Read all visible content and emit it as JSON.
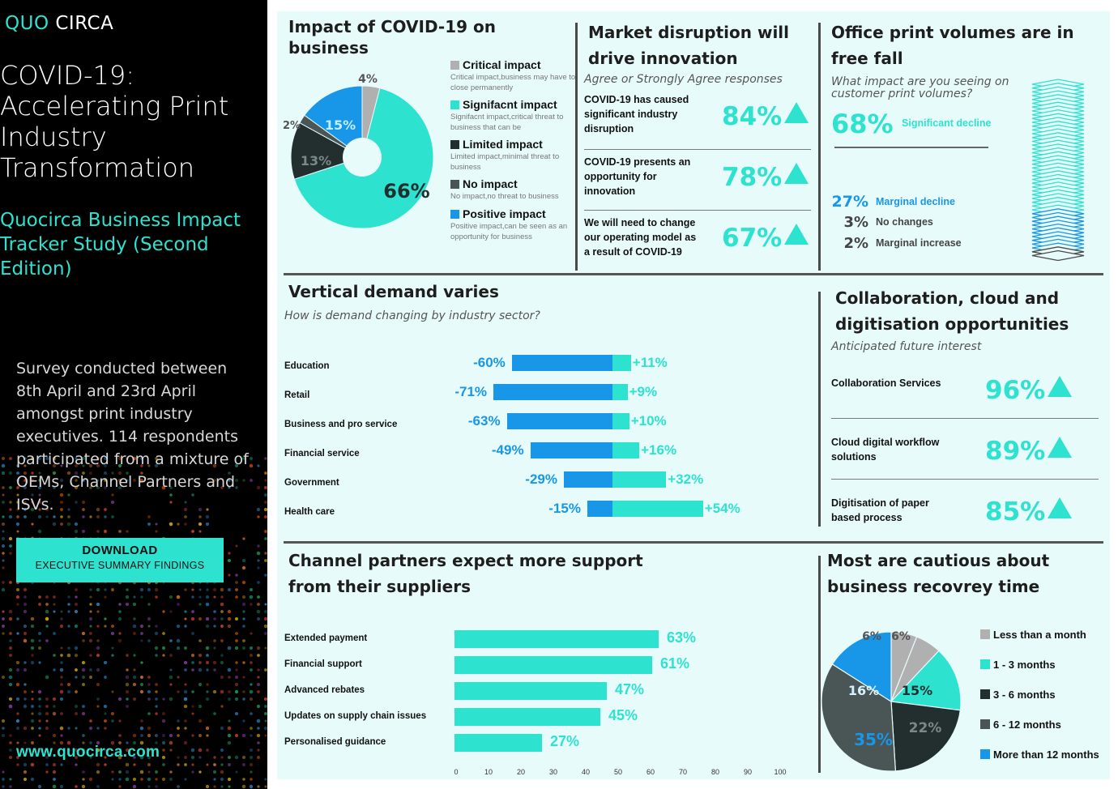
{
  "sidebar": {
    "logo_part1": "QUO",
    "logo_part2": "CIRCA",
    "title": "COVID-19: Accelerating Print Industry Transformation",
    "subtitle": "Quocirca Business Impact Tracker Study (Second Edition)",
    "survey": "Survey conducted between 8th April and 23rd April amongst print industry executives. 114 respondents participated from a mixture of OEMs, Channel Partners and ISVs.",
    "download_line1": "DOWNLOAD",
    "download_line2": "EXECUTIVE SUMMARY FINDINGS",
    "website": "www.quocirca.com"
  },
  "colors": {
    "teal": "#2de2cf",
    "blue": "#1896e7",
    "grey": "#b0b0b0",
    "dark": "#232f2f",
    "mid_grey": "#4a5555"
  },
  "impact": {
    "title": "Impact of COVID-19 on business",
    "legend": [
      {
        "label": "Critical impact",
        "desc": "Critical impact,business may have to close permanently",
        "color": "#b0b0b0"
      },
      {
        "label": "Signifacnt impact",
        "desc": "Signifacnt impact,critical threat to business that can be",
        "color": "#2de2cf"
      },
      {
        "label": "Limited impact",
        "desc": "Limited impact,minimal threat to business",
        "color": "#232f2f"
      },
      {
        "label": "No impact",
        "desc": "No impact,no threat to business",
        "color": "#4a5555"
      },
      {
        "label": "Positive impact",
        "desc": "Positive impact,can be seen as an opportunity for business",
        "color": "#1896e7"
      }
    ],
    "labels": {
      "critical": "4%",
      "significant": "66%",
      "limited": "13%",
      "none": "2%",
      "positive": "15%"
    }
  },
  "market": {
    "title": "Market disruption will drive innovation",
    "subtitle": "Agree or Strongly Agree responses",
    "rows": [
      {
        "text": "COVID-19 has caused significant industry disruption",
        "value": "84%"
      },
      {
        "text": "COVID-19 presents an opportunity for innovation",
        "value": "78%"
      },
      {
        "text": "We will need to change our operating model as a result of COVID-19",
        "value": "67%"
      }
    ]
  },
  "office": {
    "title": "Office print volumes are in free fall",
    "question": "What impact are you seeing on customer print volumes?",
    "main_value": "68%",
    "main_label": "Significant decline",
    "rows": [
      {
        "value": "27%",
        "label": "Marginal decline"
      },
      {
        "value": "3%",
        "label": "No changes"
      },
      {
        "value": "2%",
        "label": "Marginal increase"
      }
    ]
  },
  "vertical": {
    "title": "Vertical demand varies",
    "subtitle": "How is demand changing by industry sector?",
    "rows": [
      {
        "label": "Education",
        "neg_label": "-60%",
        "pos_label": "+11%"
      },
      {
        "label": "Retail",
        "neg_label": "-71%",
        "pos_label": "+9%"
      },
      {
        "label": "Business and pro service",
        "neg_label": "-63%",
        "pos_label": "+10%"
      },
      {
        "label": "Financial service",
        "neg_label": "-49%",
        "pos_label": "+16%"
      },
      {
        "label": "Government",
        "neg_label": "-29%",
        "pos_label": "+32%"
      },
      {
        "label": "Health care",
        "neg_label": "-15%",
        "pos_label": "+54%"
      }
    ]
  },
  "collab": {
    "title": "Collaboration, cloud and digitisation opportunities",
    "subtitle": "Anticipated future interest",
    "rows": [
      {
        "text": "Collaboration Services",
        "value": "96%"
      },
      {
        "text": "Cloud digital workflow solutions",
        "value": "89%"
      },
      {
        "text": "Digitisation of paper based process",
        "value": "85%"
      }
    ]
  },
  "channel": {
    "title": "Channel partners expect more support from their suppliers",
    "rows": [
      {
        "label": "Extended payment",
        "value_label": "63%"
      },
      {
        "label": "Financial support",
        "value_label": "61%"
      },
      {
        "label": "Advanced rebates",
        "value_label": "47%"
      },
      {
        "label": "Updates on supply chain issues",
        "value_label": "45%"
      },
      {
        "label": "Personalised guidance",
        "value_label": "27%"
      }
    ],
    "ticks": [
      "0",
      "10",
      "20",
      "30",
      "40",
      "50",
      "60",
      "70",
      "80",
      "90",
      "100"
    ]
  },
  "recovery": {
    "title": "Most are cautious about business recovrey time",
    "legend": [
      {
        "label": "Less than a month",
        "color": "#b0b0b0"
      },
      {
        "label": "1 - 3 months",
        "color": "#2de2cf"
      },
      {
        "label": "3 - 6 months",
        "color": "#232f2f"
      },
      {
        "label": "6 - 12 months",
        "color": "#4a5555"
      },
      {
        "label": "More than 12 months",
        "color": "#1896e7"
      }
    ],
    "labels": {
      "a": "6%",
      "b": "6%",
      "c": "15%",
      "d": "22%",
      "e": "35%",
      "f": "16%"
    }
  },
  "chart_data": [
    {
      "type": "pie",
      "title": "Impact of COVID-19 on business",
      "categories": [
        "Critical impact",
        "Signifacnt impact",
        "Limited impact",
        "No impact",
        "Positive impact"
      ],
      "values": [
        4,
        66,
        13,
        2,
        15
      ]
    },
    {
      "type": "bar",
      "title": "Vertical demand varies",
      "categories": [
        "Education",
        "Retail",
        "Business and pro service",
        "Financial service",
        "Government",
        "Health care"
      ],
      "series": [
        {
          "values": [
            -60,
            -71,
            -63,
            -49,
            -29,
            -15
          ]
        },
        {
          "values": [
            11,
            9,
            10,
            16,
            32,
            54
          ]
        }
      ]
    },
    {
      "type": "bar",
      "title": "Channel partners expect more support from their suppliers",
      "categories": [
        "Extended payment",
        "Financial support",
        "Advanced rebates",
        "Updates on supply chain issues",
        "Personalised guidance"
      ],
      "values": [
        63,
        61,
        47,
        45,
        27
      ],
      "xlim": [
        0,
        100
      ]
    },
    {
      "type": "pie",
      "title": "Most are cautious about business recovrey time",
      "categories": [
        "Less than a month",
        "Less than a month",
        "1 - 3 months",
        "3 - 6 months",
        "6 - 12 months",
        "More than 12 months"
      ],
      "values": [
        6,
        6,
        15,
        22,
        35,
        16
      ]
    }
  ]
}
